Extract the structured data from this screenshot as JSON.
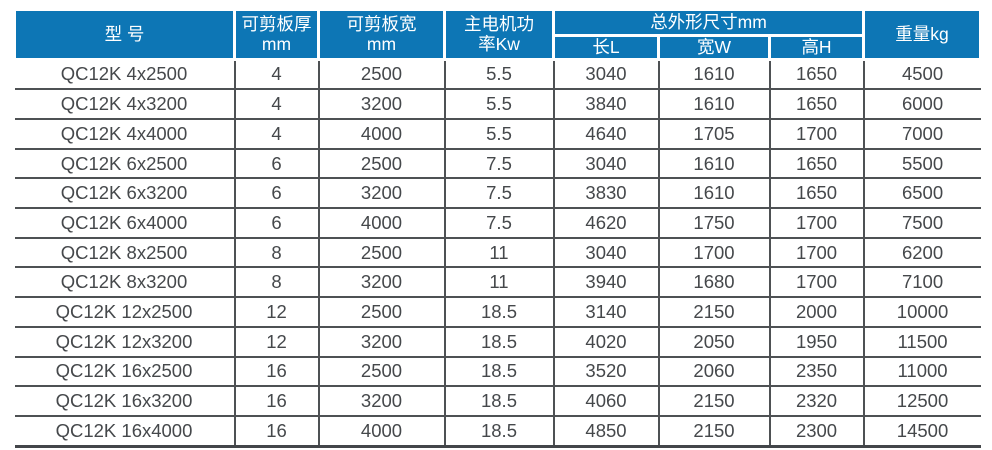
{
  "table": {
    "headers": {
      "model": "型 号",
      "thickness": "可剪板厚\nmm",
      "width": "可剪板宽\nmm",
      "power": "主电机功\n率Kw",
      "dims": "总外形尺寸mm",
      "dim_l": "长L",
      "dim_w": "宽W",
      "dim_h": "高H",
      "weight": "重量kg"
    },
    "col_keys": [
      "model",
      "thickness",
      "width",
      "power",
      "length-l",
      "width-w",
      "height-h",
      "weight"
    ],
    "rows": [
      [
        "QC12K 4x2500",
        "4",
        "2500",
        "5.5",
        "3040",
        "1610",
        "1650",
        "4500"
      ],
      [
        "QC12K 4x3200",
        "4",
        "3200",
        "5.5",
        "3840",
        "1610",
        "1650",
        "6000"
      ],
      [
        "QC12K 4x4000",
        "4",
        "4000",
        "5.5",
        "4640",
        "1705",
        "1700",
        "7000"
      ],
      [
        "QC12K 6x2500",
        "6",
        "2500",
        "7.5",
        "3040",
        "1610",
        "1650",
        "5500"
      ],
      [
        "QC12K 6x3200",
        "6",
        "3200",
        "7.5",
        "3830",
        "1610",
        "1650",
        "6500"
      ],
      [
        "QC12K 6x4000",
        "6",
        "4000",
        "7.5",
        "4620",
        "1750",
        "1700",
        "7500"
      ],
      [
        "QC12K 8x2500",
        "8",
        "2500",
        "11",
        "3040",
        "1700",
        "1700",
        "6200"
      ],
      [
        "QC12K 8x3200",
        "8",
        "3200",
        "11",
        "3940",
        "1680",
        "1700",
        "7100"
      ],
      [
        "QC12K 12x2500",
        "12",
        "2500",
        "18.5",
        "3140",
        "2150",
        "2000",
        "10000"
      ],
      [
        "QC12K 12x3200",
        "12",
        "3200",
        "18.5",
        "4020",
        "2050",
        "1950",
        "11500"
      ],
      [
        "QC12K 16x2500",
        "16",
        "2500",
        "18.5",
        "3520",
        "2060",
        "2350",
        "11000"
      ],
      [
        "QC12K 16x3200",
        "16",
        "3200",
        "18.5",
        "4060",
        "2150",
        "2320",
        "12500"
      ],
      [
        "QC12K 16x4000",
        "16",
        "4000",
        "18.5",
        "4850",
        "2150",
        "2300",
        "14500"
      ]
    ]
  },
  "colors": {
    "header_bg": "#0d76b5",
    "header_text": "#ffffff",
    "body_text": "#45484b",
    "grid_line": "#4e5154"
  }
}
